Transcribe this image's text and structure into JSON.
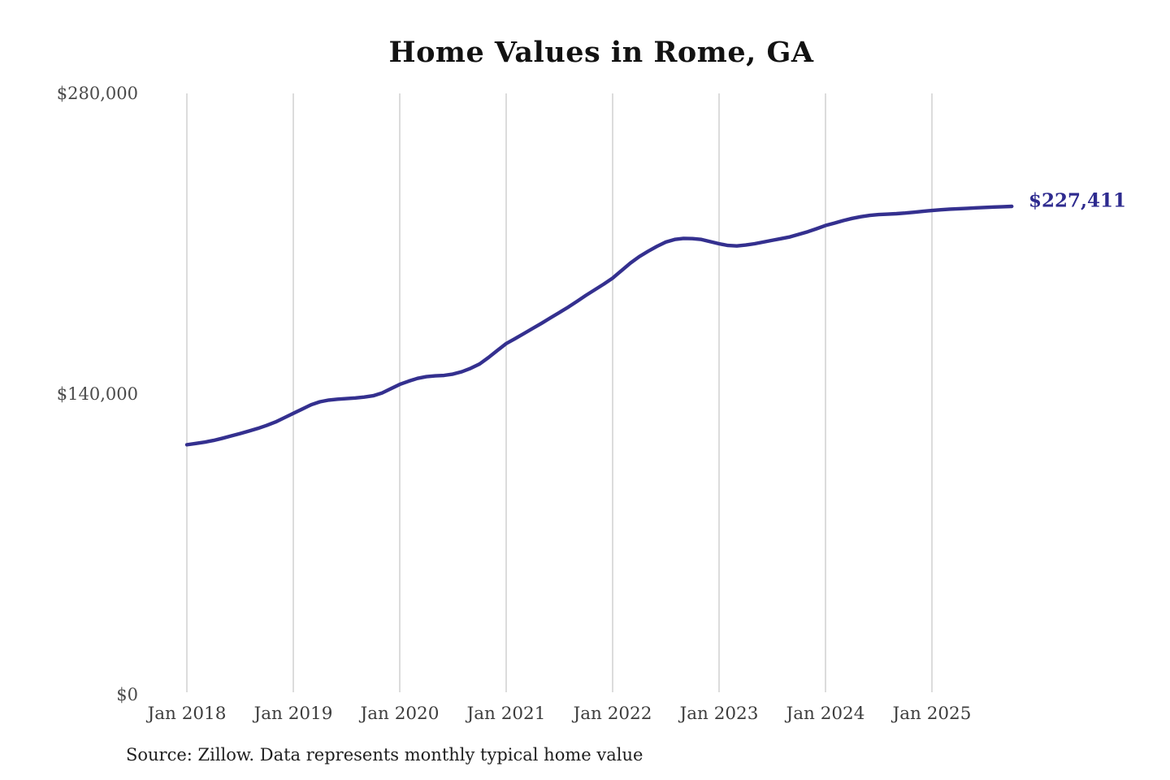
{
  "title": "Home Values in Rome, GA",
  "source_note": "Source: Zillow. Data represents monthly typical home value",
  "end_label": "$227,411",
  "y_axis": {
    "ticks": [
      "$280,000",
      "$140,000",
      "$0"
    ],
    "tick_values": [
      280000,
      140000,
      0
    ]
  },
  "x_axis": {
    "ticks": [
      "Jan 2018",
      "Jan 2019",
      "Jan 2020",
      "Jan 2021",
      "Jan 2022",
      "Jan 2023",
      "Jan 2024",
      "Jan 2025"
    ]
  },
  "colors": {
    "line": "#34308f",
    "end_label": "#2e2b8f",
    "grid": "#c9c9c9",
    "title": "#121212",
    "axis_text": "#4a4a4a"
  },
  "chart_data": {
    "type": "line",
    "title": "Home Values in Rome, GA",
    "series_name": "Monthly typical home value (Zillow)",
    "interval": "monthly",
    "x_start": "2018-01",
    "x_end": "2025-10",
    "x_tick_labels": [
      "Jan 2018",
      "Jan 2019",
      "Jan 2020",
      "Jan 2021",
      "Jan 2022",
      "Jan 2023",
      "Jan 2024",
      "Jan 2025"
    ],
    "ylim": [
      0,
      280000
    ],
    "y_ticks": [
      0,
      140000,
      280000
    ],
    "grid": "vertical-only",
    "end_annotation": {
      "label": "$227,411",
      "value": 227411,
      "date": "2025-10"
    },
    "values": [
      116400,
      117000,
      117600,
      118400,
      119400,
      120500,
      121600,
      122800,
      124000,
      125400,
      127000,
      129000,
      131000,
      133000,
      135000,
      136400,
      137200,
      137600,
      137900,
      138200,
      138600,
      139200,
      140500,
      142500,
      144500,
      146000,
      147300,
      148100,
      148500,
      148700,
      149300,
      150400,
      152000,
      154000,
      157000,
      160300,
      163500,
      165800,
      168200,
      170600,
      173000,
      175500,
      178000,
      180500,
      183200,
      186000,
      188600,
      191200,
      194000,
      197500,
      201000,
      204000,
      206500,
      208800,
      210800,
      212000,
      212500,
      212400,
      212000,
      211000,
      210000,
      209200,
      209000,
      209400,
      210000,
      210800,
      211600,
      212400,
      213200,
      214400,
      215600,
      217000,
      218500,
      219600,
      220800,
      221800,
      222600,
      223200,
      223600,
      223800,
      224000,
      224300,
      224700,
      225100,
      225500,
      225800,
      226100,
      226300,
      226500,
      226700,
      226900,
      227100,
      227250,
      227411
    ]
  }
}
